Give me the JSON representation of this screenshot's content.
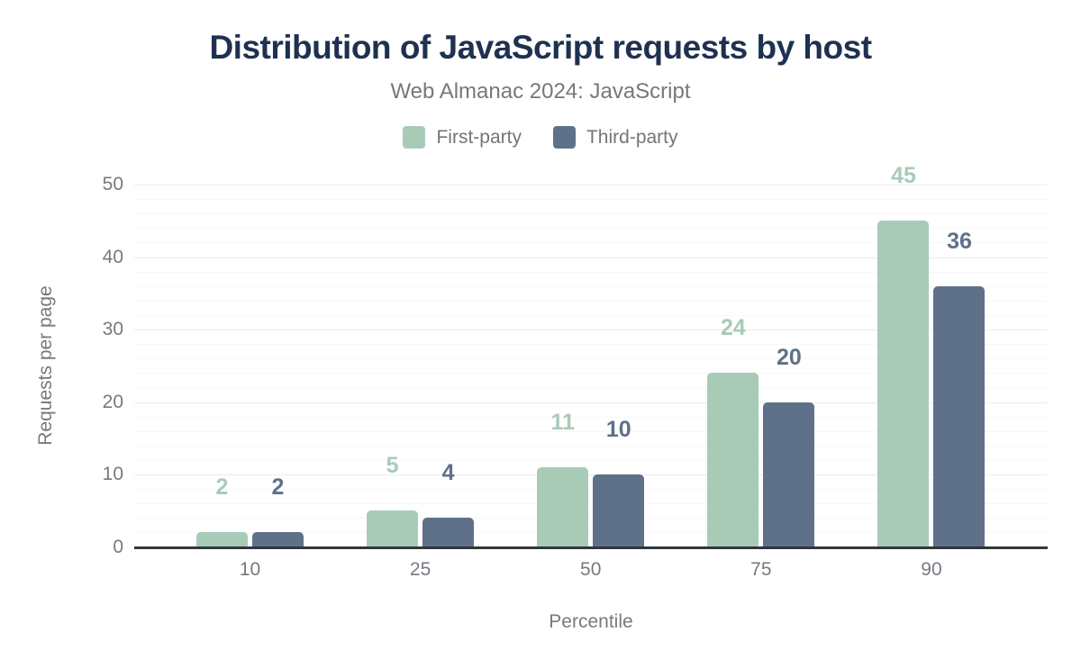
{
  "chart_data": {
    "type": "bar",
    "title": "Distribution of JavaScript requests by host",
    "subtitle": "Web Almanac 2024: JavaScript",
    "xlabel": "Percentile",
    "ylabel": "Requests per page",
    "categories": [
      "10",
      "25",
      "50",
      "75",
      "90"
    ],
    "series": [
      {
        "name": "First-party",
        "color": "#a8cbb8",
        "values": [
          2,
          5,
          11,
          24,
          45
        ]
      },
      {
        "name": "Third-party",
        "color": "#5e7189",
        "values": [
          2,
          4,
          10,
          20,
          36
        ]
      }
    ],
    "ylim": [
      0,
      50
    ],
    "yticks": [
      0,
      10,
      20,
      30,
      40,
      50
    ],
    "grid": {
      "minor_step": 2,
      "major_step": 10,
      "minor_color": "#f7f7f7",
      "major_color": "#ececec"
    },
    "axis_line_color": "#32363d",
    "title_color": "#1e3150",
    "axis_text_color": "#757a80",
    "legend_position": "top",
    "data_labels": true
  }
}
